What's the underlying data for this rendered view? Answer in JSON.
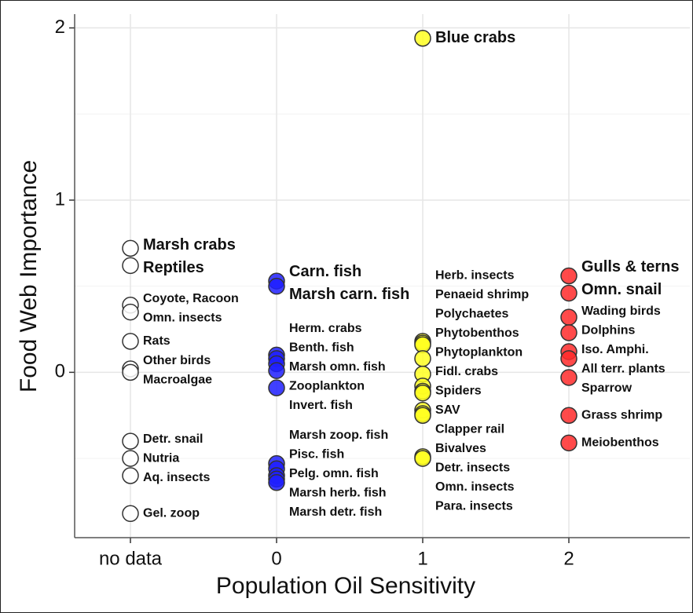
{
  "chart_data": {
    "type": "scatter",
    "x_label": "Population Oil Sensitivity",
    "y_label": "Food Web Importance",
    "categories": [
      "no data",
      "0",
      "1",
      "2"
    ],
    "ylim": [
      -0.96,
      2.08
    ],
    "yticks": [
      0,
      1,
      2
    ],
    "grid": true,
    "series": [
      {
        "color": "#ffffff",
        "labels": [
          "Marsh crabs",
          "Reptiles",
          "Coyote, Racoon",
          "Omn. insects",
          "Rats",
          "Other birds",
          "Macroalgae",
          "Detr. snail",
          "Nutria",
          "Aq. insects",
          "Gel. zoop"
        ],
        "values": [
          0.72,
          0.62,
          0.39,
          0.35,
          0.18,
          0.02,
          0.0,
          -0.4,
          -0.5,
          -0.6,
          -0.82
        ]
      },
      {
        "color": "#1f1fff",
        "labels": [
          "Carn. fish",
          "Marsh carn. fish",
          "Herm. crabs",
          "Benth. fish",
          "Marsh omn. fish",
          "Zooplankton",
          "Invert. fish",
          "Marsh zoop. fish",
          "Pisc. fish",
          "Pelg. omn. fish",
          "Marsh herb. fish",
          "Marsh detr. fish"
        ],
        "values": [
          0.53,
          0.5,
          0.1,
          0.08,
          0.05,
          0.01,
          -0.09,
          -0.53,
          -0.56,
          -0.6,
          -0.62,
          -0.64
        ]
      },
      {
        "color": "#ffff22",
        "labels": [
          "Blue crabs",
          "Herb. insects",
          "Penaeid shrimp",
          "Polychaetes",
          "Phytobenthos",
          "Phytoplankton",
          "Fidl. crabs",
          "Spiders",
          "SAV",
          "Clapper rail",
          "Bivalves",
          "Detr. insects",
          "Omn. insects",
          "Para. insects"
        ],
        "values": [
          1.94,
          0.18,
          0.17,
          0.16,
          0.08,
          -0.01,
          -0.08,
          -0.11,
          -0.12,
          -0.22,
          -0.24,
          -0.25,
          -0.49,
          -0.5
        ]
      },
      {
        "color": "#ff2a2a",
        "labels": [
          "Gulls & terns",
          "Omn. snail",
          "Wading birds",
          "Dolphins",
          "Iso. Amphi.",
          "All terr. plants",
          "Sparrow",
          "Grass shrimp",
          "Meiobenthos"
        ],
        "values": [
          0.56,
          0.46,
          0.32,
          0.23,
          0.12,
          0.08,
          -0.03,
          -0.25,
          -0.41
        ]
      }
    ]
  }
}
